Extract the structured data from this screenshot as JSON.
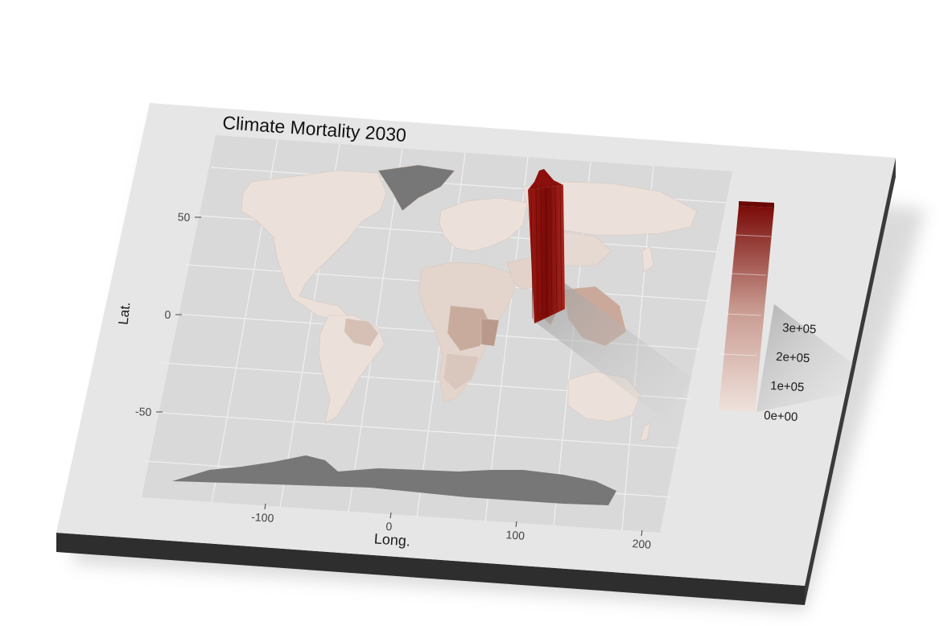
{
  "title": "Climate Mortality 2030",
  "axes": {
    "xlabel": "Long.",
    "ylabel": "Lat.",
    "xticks": [
      "-100",
      "0",
      "100",
      "200"
    ],
    "yticks": [
      "50",
      "0",
      "-50"
    ]
  },
  "legend": {
    "ticks": [
      "0e+00",
      "1e+05",
      "2e+05",
      "3e+05"
    ],
    "color_low": "#efe2dc",
    "color_high": "#7a0a07"
  },
  "colors": {
    "base_face": "#e6e6e6",
    "base_side": "#2e2e2e",
    "panel": "#d9d9d9",
    "land_low": "#ebe0da",
    "land_mid": "#cdb3a6",
    "land_dark": "#a68a80",
    "na_land": "#777777",
    "peak": "#8b0f0c"
  },
  "chart_data": {
    "type": "map",
    "title": "Climate Mortality 2030",
    "xlabel": "Long.",
    "ylabel": "Lat.",
    "xlim": [
      -180,
      200
    ],
    "ylim": [
      -90,
      90
    ],
    "fill_scale": {
      "min": 0,
      "max": 350000,
      "ticks": [
        0,
        100000,
        200000,
        300000
      ]
    },
    "regions": [
      {
        "name": "China",
        "value": 350000
      },
      {
        "name": "Greenland",
        "value": null
      },
      {
        "name": "Antarctica",
        "value": null
      }
    ]
  }
}
